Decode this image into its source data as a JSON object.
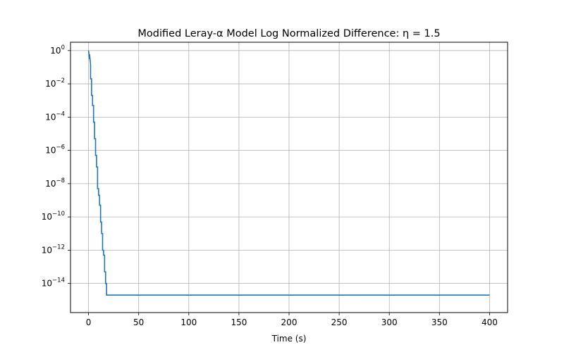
{
  "chart_data": {
    "type": "line",
    "title": "Modified Leray-α Model Log Normalized Difference: η = 1.5",
    "xlabel": "Time (s)",
    "ylabel": "",
    "yscale": "log",
    "xlim": [
      -18,
      418
    ],
    "ylim_exponent": [
      -15.75,
      0.5
    ],
    "grid": true,
    "legend": "none",
    "line_color": "#1f77b4",
    "x_ticks": [
      0,
      50,
      100,
      150,
      200,
      250,
      300,
      350,
      400
    ],
    "x_tick_labels": [
      "0",
      "50",
      "100",
      "150",
      "200",
      "250",
      "300",
      "350",
      "400"
    ],
    "y_ticks_exponent": [
      0,
      -2,
      -4,
      -6,
      -8,
      -10,
      -12,
      -14
    ],
    "y_tick_labels": [
      {
        "base": "10",
        "exp": "0"
      },
      {
        "base": "10",
        "exp": "−2"
      },
      {
        "base": "10",
        "exp": "−4"
      },
      {
        "base": "10",
        "exp": "−6"
      },
      {
        "base": "10",
        "exp": "−8"
      },
      {
        "base": "10",
        "exp": "−10"
      },
      {
        "base": "10",
        "exp": "−12"
      },
      {
        "base": "10",
        "exp": "−14"
      }
    ],
    "series": [
      {
        "x": [
          0,
          1,
          1,
          2,
          2,
          3,
          3,
          4,
          4,
          5,
          5,
          6,
          6,
          7,
          7,
          8,
          8,
          9,
          9,
          10,
          10,
          11,
          11,
          12,
          12,
          13,
          13,
          14,
          14,
          15,
          15,
          16,
          16,
          17,
          17,
          18,
          18,
          19,
          19,
          20,
          20,
          21,
          21,
          22,
          22,
          23,
          23,
          24,
          24,
          400
        ],
        "y": [
          1.0,
          0.3,
          0.6,
          0.15,
          0.02,
          0.02,
          0.002,
          0.002,
          0.0005,
          0.0005,
          5e-05,
          5e-05,
          5e-06,
          5e-06,
          5e-07,
          5e-07,
          1e-07,
          1e-07,
          5e-09,
          5e-09,
          2e-09,
          2e-09,
          5e-10,
          5e-10,
          5e-11,
          5e-11,
          1e-11,
          1e-11,
          1e-12,
          1e-12,
          5e-13,
          5e-13,
          5e-14,
          5e-14,
          1e-14,
          1e-14,
          2e-15,
          2e-15,
          2e-15,
          2e-15,
          2e-15,
          2e-15,
          2e-15,
          2e-15,
          2e-15,
          2e-15,
          2e-15,
          2e-15,
          2e-15,
          2e-15
        ]
      }
    ]
  }
}
